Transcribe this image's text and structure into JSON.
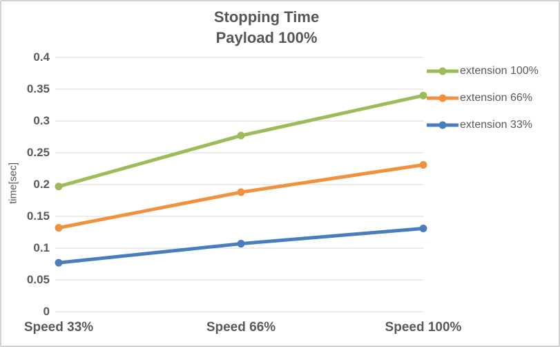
{
  "chart_data": {
    "type": "line",
    "title": "Stopping Time",
    "subtitle": "Payload 100%",
    "ylabel": "time[sec]",
    "xlabel": "",
    "categories": [
      "Speed 33%",
      "Speed 66%",
      "Speed 100%"
    ],
    "series": [
      {
        "name": "extension 100%",
        "color": "#9CBB59",
        "values": [
          0.197,
          0.277,
          0.34
        ]
      },
      {
        "name": "extension 66%",
        "color": "#F2913D",
        "values": [
          0.132,
          0.188,
          0.231
        ]
      },
      {
        "name": "extension 33%",
        "color": "#4A7EBB",
        "values": [
          0.077,
          0.107,
          0.131
        ]
      }
    ],
    "ylim": [
      0,
      0.4
    ],
    "ytick_step": 0.05,
    "yticks": [
      {
        "value": 0,
        "label": "0"
      },
      {
        "value": 0.05,
        "label": "0.05"
      },
      {
        "value": 0.1,
        "label": "0.1"
      },
      {
        "value": 0.15,
        "label": "0.15"
      },
      {
        "value": 0.2,
        "label": "0.2"
      },
      {
        "value": 0.25,
        "label": "0.25"
      },
      {
        "value": 0.3,
        "label": "0.3"
      },
      {
        "value": 0.35,
        "label": "0.35"
      },
      {
        "value": 0.4,
        "label": "0.4"
      }
    ],
    "grid": true,
    "legend_position": "right",
    "marker": "circle"
  },
  "colors": {
    "text": "#595959",
    "gridline": "#D9D9D9",
    "frame_border": "#D2D2D2",
    "background": "#FFFFFF"
  }
}
